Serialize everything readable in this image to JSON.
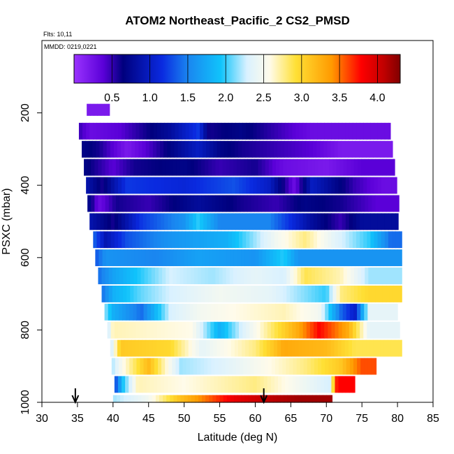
{
  "chart_data": {
    "type": "heatmap",
    "title": "ATOM2 Northeast_Pacific_2 CS2_PMSD",
    "flights_label": "Flts: 10,11",
    "dates_label": "MMDD: 0219,0221",
    "xlabel": "Latitude (deg N)",
    "ylabel": "PSXC (mbar)",
    "xlim": [
      30,
      85
    ],
    "ylim": [
      1000,
      0
    ],
    "xticks": [
      "30",
      "35",
      "40",
      "45",
      "50",
      "55",
      "60",
      "65",
      "70",
      "75",
      "80",
      "85"
    ],
    "yticks": [
      "200",
      "400",
      "600",
      "800",
      "1000"
    ],
    "colorbar": {
      "range": [
        0,
        4.3
      ],
      "ticks": [
        "0.5",
        "1.0",
        "1.5",
        "2.0",
        "2.5",
        "3.0",
        "3.5",
        "4.0"
      ]
    },
    "markers_latitude": [
      34.7,
      61.2
    ],
    "pressure_levels": [
      200,
      250,
      300,
      350,
      400,
      450,
      500,
      550,
      600,
      650,
      700,
      750,
      800,
      850,
      900,
      950,
      1000
    ],
    "rows": [
      {
        "p": 200,
        "lat_start": 36.3,
        "lat_end": 39.5,
        "segments": [
          [
            36.3,
            0.2
          ]
        ]
      },
      {
        "p": 250,
        "lat_start": 35.2,
        "lat_end": 79.0,
        "segments": [
          [
            35.2,
            0.5
          ],
          [
            37.0,
            0.3
          ],
          [
            41.0,
            0.4
          ],
          [
            48.0,
            0.8
          ],
          [
            52.0,
            1.2
          ],
          [
            53.5,
            0.6
          ],
          [
            58.0,
            0.7
          ],
          [
            68.0,
            0.3
          ],
          [
            79.0,
            0.3
          ]
        ]
      },
      {
        "p": 300,
        "lat_start": 35.6,
        "lat_end": 79.3,
        "segments": [
          [
            35.6,
            0.7
          ],
          [
            38.0,
            0.6
          ],
          [
            42.0,
            0.2
          ],
          [
            47.0,
            0.6
          ],
          [
            52.0,
            1.0
          ],
          [
            55.0,
            0.7
          ],
          [
            58.0,
            0.6
          ],
          [
            63.0,
            0.5
          ],
          [
            68.0,
            0.4
          ],
          [
            72.0,
            0.2
          ],
          [
            79.3,
            0.2
          ]
        ]
      },
      {
        "p": 350,
        "lat_start": 35.9,
        "lat_end": 79.6,
        "segments": [
          [
            35.9,
            0.7
          ],
          [
            40.0,
            0.4
          ],
          [
            43.0,
            0.6
          ],
          [
            50.0,
            0.7
          ],
          [
            55.0,
            0.5
          ],
          [
            60.0,
            0.6
          ],
          [
            64.0,
            0.3
          ],
          [
            70.0,
            0.2
          ],
          [
            75.0,
            0.4
          ],
          [
            79.6,
            0.4
          ]
        ]
      },
      {
        "p": 400,
        "lat_start": 36.2,
        "lat_end": 79.9,
        "segments": [
          [
            36.2,
            0.9
          ],
          [
            38.5,
            0.6
          ],
          [
            42.0,
            1.2
          ],
          [
            50.0,
            1.1
          ],
          [
            57.0,
            1.3
          ],
          [
            62.0,
            1.0
          ],
          [
            65.5,
            0.3
          ],
          [
            68.0,
            1.0
          ],
          [
            74.0,
            0.5
          ],
          [
            78.0,
            0.3
          ],
          [
            79.9,
            0.3
          ]
        ]
      },
      {
        "p": 450,
        "lat_start": 36.4,
        "lat_end": 80.2,
        "segments": [
          [
            36.4,
            0.8
          ],
          [
            38.0,
            0.3
          ],
          [
            40.5,
            0.6
          ],
          [
            45.0,
            0.5
          ],
          [
            52.0,
            0.8
          ],
          [
            58.0,
            0.6
          ],
          [
            63.0,
            0.5
          ],
          [
            67.0,
            0.7
          ],
          [
            72.0,
            0.6
          ],
          [
            77.0,
            0.4
          ],
          [
            80.2,
            0.4
          ]
        ]
      },
      {
        "p": 500,
        "lat_start": 36.7,
        "lat_end": 80.1,
        "segments": [
          [
            36.7,
            0.9
          ],
          [
            40.0,
            0.6
          ],
          [
            44.0,
            1.2
          ],
          [
            50.0,
            1.6
          ],
          [
            52.0,
            2.0
          ],
          [
            55.0,
            1.5
          ],
          [
            62.0,
            1.5
          ],
          [
            68.0,
            0.8
          ],
          [
            72.0,
            0.5
          ],
          [
            75.0,
            0.8
          ],
          [
            80.1,
            0.8
          ]
        ]
      },
      {
        "p": 550,
        "lat_start": 37.2,
        "lat_end": 80.6,
        "segments": [
          [
            37.2,
            1.4
          ],
          [
            39.0,
            0.9
          ],
          [
            42.0,
            1.3
          ],
          [
            48.0,
            1.6
          ],
          [
            56.0,
            1.8
          ],
          [
            63.0,
            2.5
          ],
          [
            67.0,
            2.8
          ],
          [
            71.0,
            2.4
          ],
          [
            76.0,
            2.0
          ],
          [
            79.0,
            1.4
          ],
          [
            80.6,
            1.4
          ]
        ]
      },
      {
        "p": 600,
        "lat_start": 37.5,
        "lat_end": 80.6,
        "segments": [
          [
            37.5,
            1.3
          ],
          [
            39.0,
            1.6
          ],
          [
            46.0,
            1.5
          ],
          [
            52.0,
            1.7
          ],
          [
            60.0,
            1.6
          ],
          [
            64.0,
            2.0
          ],
          [
            66.0,
            1.6
          ],
          [
            80.6,
            1.6
          ]
        ]
      },
      {
        "p": 650,
        "lat_start": 37.9,
        "lat_end": 80.6,
        "segments": [
          [
            37.9,
            1.4
          ],
          [
            40.0,
            1.7
          ],
          [
            44.0,
            2.0
          ],
          [
            48.0,
            2.3
          ],
          [
            54.0,
            2.2
          ],
          [
            60.0,
            2.4
          ],
          [
            64.0,
            2.3
          ],
          [
            67.0,
            2.9
          ],
          [
            72.0,
            2.7
          ],
          [
            76.0,
            2.2
          ],
          [
            80.6,
            2.2
          ]
        ]
      },
      {
        "p": 700,
        "lat_start": 38.4,
        "lat_end": 80.6,
        "segments": [
          [
            38.4,
            1.4
          ],
          [
            40.0,
            1.8
          ],
          [
            44.0,
            2.1
          ],
          [
            48.0,
            2.3
          ],
          [
            55.0,
            2.5
          ],
          [
            62.0,
            2.4
          ],
          [
            70.0,
            2.0
          ],
          [
            72.0,
            2.8
          ],
          [
            76.0,
            3.0
          ],
          [
            80.6,
            3.0
          ]
        ]
      },
      {
        "p": 750,
        "lat_start": 38.8,
        "lat_end": 80.0,
        "segments": [
          [
            38.8,
            2.2
          ],
          [
            40.0,
            1.8
          ],
          [
            44.0,
            1.4
          ],
          [
            48.0,
            2.3
          ],
          [
            52.0,
            2.5
          ],
          [
            57.0,
            2.6
          ],
          [
            64.0,
            2.7
          ],
          [
            69.0,
            2.5
          ],
          [
            72.0,
            1.4
          ],
          [
            74.0,
            1.0
          ],
          [
            76.0,
            2.4
          ],
          [
            80.0,
            2.4
          ]
        ]
      },
      {
        "p": 800,
        "lat_start": 39.2,
        "lat_end": 80.3,
        "segments": [
          [
            39.2,
            2.2
          ],
          [
            40.0,
            2.7
          ],
          [
            51.0,
            2.6
          ],
          [
            55.0,
            1.8
          ],
          [
            58.0,
            2.3
          ],
          [
            62.0,
            2.8
          ],
          [
            66.0,
            3.3
          ],
          [
            69.0,
            3.8
          ],
          [
            73.0,
            3.3
          ],
          [
            76.0,
            2.4
          ],
          [
            80.3,
            2.4
          ]
        ]
      },
      {
        "p": 850,
        "lat_start": 39.6,
        "lat_end": 80.6,
        "segments": [
          [
            39.6,
            2.2
          ],
          [
            41.0,
            3.1
          ],
          [
            48.0,
            3.0
          ],
          [
            52.5,
            2.4
          ],
          [
            60.0,
            2.8
          ],
          [
            64.0,
            3.3
          ],
          [
            70.0,
            3.2
          ],
          [
            74.0,
            2.9
          ],
          [
            80.6,
            2.9
          ]
        ]
      },
      {
        "p": 900,
        "lat_start": 39.8,
        "lat_end": 77.0,
        "segments": [
          [
            39.8,
            2.2
          ],
          [
            41.5,
            2.6
          ],
          [
            45.0,
            3.2
          ],
          [
            49.5,
            2.2
          ],
          [
            54.0,
            2.3
          ],
          [
            62.0,
            2.6
          ],
          [
            67.0,
            2.8
          ],
          [
            72.0,
            3.1
          ],
          [
            75.0,
            3.6
          ],
          [
            77.0,
            3.6
          ]
        ]
      },
      {
        "p": 950,
        "lat_start": 40.2,
        "lat_end": 74.0,
        "segments": [
          [
            40.2,
            1.2
          ],
          [
            41.5,
            2.0
          ],
          [
            43.5,
            2.7
          ],
          [
            50.0,
            2.6
          ],
          [
            60.0,
            2.8
          ],
          [
            70.5,
            2.3
          ],
          [
            71.5,
            3.8
          ],
          [
            74.0,
            3.8
          ]
        ]
      },
      {
        "p": 1000,
        "lat_start": 40.0,
        "lat_end": 70.8,
        "segments": [
          [
            40.0,
            2.2
          ],
          [
            45.0,
            2.5
          ],
          [
            49.0,
            3.1
          ],
          [
            53.0,
            3.5
          ],
          [
            57.0,
            3.9
          ],
          [
            62.0,
            4.1
          ],
          [
            66.0,
            4.2
          ],
          [
            70.8,
            4.2
          ]
        ]
      }
    ]
  }
}
